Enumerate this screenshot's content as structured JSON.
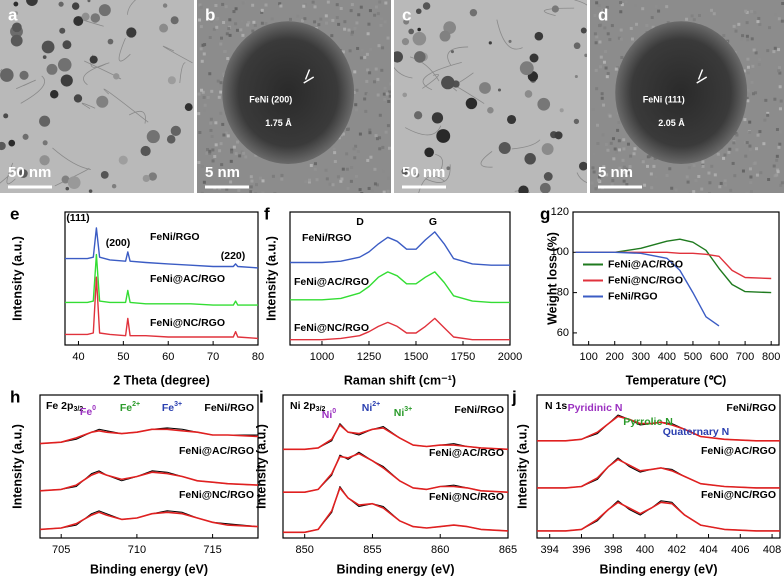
{
  "images": [
    {
      "label": "a",
      "scale_bar": "50 nm"
    },
    {
      "label": "b",
      "scale_bar": "5 nm",
      "annotation": "FeNi (200)",
      "spacing": "1.75 Å"
    },
    {
      "label": "c",
      "scale_bar": "50 nm"
    },
    {
      "label": "d",
      "scale_bar": "5 nm",
      "annotation": "FeNi (111)",
      "spacing": "2.05 Å"
    }
  ],
  "chart_data": [
    {
      "type": "line",
      "label": "e",
      "xlabel": "2 Theta (degree)",
      "ylabel": "Intensity (a.u.)",
      "x": [
        37,
        40,
        42,
        43.3,
        44,
        44.7,
        47,
        50.5,
        51,
        51.5,
        55,
        60,
        65,
        70,
        74.5,
        75,
        75.5,
        80
      ],
      "xlim": [
        37,
        80
      ],
      "xticks": [
        40,
        50,
        60,
        70,
        80
      ],
      "ylim": [
        0,
        100
      ],
      "annotations": [
        "(111)",
        "(200)",
        "(220)"
      ],
      "series": [
        {
          "name": "FeNi/RGO",
          "color": "#3b5cc4",
          "values": [
            65,
            65,
            65,
            66,
            88,
            66,
            64,
            63,
            70,
            63,
            62,
            61,
            60,
            59,
            59,
            61,
            59,
            58
          ]
        },
        {
          "name": "FeNi@AC/RGO",
          "color": "#33dd33",
          "values": [
            32,
            32,
            32,
            33,
            68,
            33,
            32,
            32,
            41,
            32,
            31,
            31,
            31,
            30,
            30,
            33,
            30,
            30
          ]
        },
        {
          "name": "FeNi@NC/RGO",
          "color": "#e0323c",
          "values": [
            8,
            8,
            8,
            9,
            51,
            9,
            8,
            7,
            20,
            7,
            7,
            6,
            6,
            6,
            6,
            10,
            6,
            5
          ]
        }
      ]
    },
    {
      "type": "line",
      "label": "f",
      "xlabel": "Raman shift (cm⁻¹)",
      "ylabel": "Intensity (a.u.)",
      "x": [
        830,
        900,
        1000,
        1100,
        1200,
        1250,
        1300,
        1350,
        1400,
        1450,
        1500,
        1550,
        1600,
        1650,
        1700,
        1800,
        1900,
        2000
      ],
      "xlim": [
        830,
        2000
      ],
      "xticks": [
        1000,
        1250,
        1500,
        1750,
        2000
      ],
      "ylim": [
        0,
        100
      ],
      "annotations": [
        "D",
        "G"
      ],
      "series": [
        {
          "name": "FeNi/RGO",
          "color": "#3b5cc4",
          "values": [
            62,
            62,
            62,
            63,
            66,
            70,
            76,
            81,
            78,
            72,
            72,
            79,
            85,
            76,
            65,
            61,
            60,
            60
          ]
        },
        {
          "name": "FeNi@AC/RGO",
          "color": "#33dd33",
          "values": [
            34,
            34,
            34,
            35,
            39,
            44,
            51,
            55,
            52,
            46,
            46,
            51,
            55,
            47,
            37,
            33,
            32,
            32
          ]
        },
        {
          "name": "FeNi@NC/RGO",
          "color": "#e0323c",
          "values": [
            4,
            4,
            4,
            5,
            7,
            10,
            14,
            17,
            14,
            9,
            9,
            14,
            20,
            13,
            6,
            4,
            4,
            4
          ]
        }
      ]
    },
    {
      "type": "line",
      "label": "g",
      "xlabel": "Temperature (℃)",
      "ylabel": "Weight loss (%)",
      "x": [
        50,
        100,
        200,
        300,
        400,
        450,
        500,
        550,
        600,
        650,
        700,
        800
      ],
      "xlim": [
        40,
        830
      ],
      "xticks": [
        100,
        200,
        300,
        400,
        500,
        600,
        700,
        800
      ],
      "ylim": [
        54,
        120
      ],
      "yticks": [
        60,
        80,
        100,
        120
      ],
      "legend": "center-left",
      "series": [
        {
          "name": "FeNi@AC/RGO",
          "color": "#1f7a1f",
          "values": [
            100,
            100,
            100,
            102,
            105.5,
            106.5,
            105,
            101,
            92,
            84,
            80.5,
            80
          ]
        },
        {
          "name": "FeNi@NC/RGO",
          "color": "#e0323c",
          "values": [
            100,
            100,
            100,
            100,
            100,
            99.5,
            99.5,
            99,
            98,
            91,
            87.5,
            87
          ]
        },
        {
          "name": "FeNi/RGO",
          "color": "#3b5cc4",
          "values": [
            100,
            100,
            100,
            99.5,
            97,
            91,
            80,
            68,
            63.5,
            null,
            null,
            null
          ]
        }
      ]
    },
    {
      "type": "line",
      "label": "h",
      "title": "Fe 2p",
      "title_sub": "3/2",
      "xlabel": "Binding energy (eV)",
      "ylabel": "Intensity (a.u.)",
      "x": [
        703.6,
        705,
        706,
        707,
        707.5,
        708,
        709,
        710,
        711,
        712,
        713,
        714,
        715,
        716,
        718
      ],
      "xlim": [
        703.6,
        718
      ],
      "xticks": [
        705,
        710,
        715
      ],
      "ylim": [
        0,
        100
      ],
      "fit_color": "#e02020",
      "components": [
        {
          "text": "Fe",
          "sup": "0",
          "color": "#9b30c0"
        },
        {
          "text": "Fe",
          "sup": "2+",
          "color": "#2a9a2a"
        },
        {
          "text": "Fe",
          "sup": "3+",
          "color": "#2a3fb0"
        }
      ],
      "series": [
        {
          "name": "FeNi/RGO",
          "color": "#000000",
          "values": [
            66,
            67,
            69,
            74,
            76,
            75,
            73,
            74,
            76,
            77,
            76,
            74,
            72,
            72,
            72
          ],
          "fit": [
            66,
            67,
            70,
            74,
            75,
            74,
            73,
            74,
            76,
            76,
            75,
            74,
            72,
            72,
            71
          ]
        },
        {
          "name": "FeNi@AC/RGO",
          "color": "#000000",
          "values": [
            33,
            34,
            36,
            45,
            47,
            44,
            40,
            43,
            47,
            46,
            43,
            40,
            39,
            38,
            37
          ],
          "fit": [
            33,
            34,
            37,
            44,
            46,
            44,
            41,
            43,
            46,
            45,
            43,
            40,
            39,
            38,
            37
          ]
        },
        {
          "name": "FeNi@NC/RGO",
          "color": "#000000",
          "values": [
            6,
            7,
            9,
            17,
            19,
            17,
            13,
            14,
            17,
            19,
            18,
            14,
            11,
            10,
            8
          ],
          "fit": [
            6,
            7,
            10,
            16,
            18,
            16,
            13,
            14,
            17,
            18,
            17,
            14,
            11,
            9,
            8
          ]
        }
      ]
    },
    {
      "type": "line",
      "label": "i",
      "title": "Ni 2p",
      "title_sub": "3/2",
      "xlabel": "Binding energy (eV)",
      "ylabel": "Intensity (a.u.)",
      "x": [
        848.4,
        850,
        851,
        852,
        852.6,
        853.2,
        854,
        855,
        855.8,
        857,
        858,
        859,
        860,
        861,
        862,
        863,
        865
      ],
      "xlim": [
        848.4,
        865
      ],
      "xticks": [
        850,
        855,
        860,
        865
      ],
      "ylim": [
        0,
        100
      ],
      "fit_color": "#e02020",
      "components": [
        {
          "text": "Ni",
          "sup": "0",
          "color": "#9b30c0"
        },
        {
          "text": "Ni",
          "sup": "2+",
          "color": "#2a3fb0"
        },
        {
          "text": "Ni",
          "sup": "3+",
          "color": "#2a9a2a"
        }
      ],
      "series": [
        {
          "name": "FeNi/RGO",
          "color": "#000000",
          "values": [
            62,
            62,
            63,
            68,
            80,
            74,
            72,
            76,
            78,
            70,
            65,
            64,
            65,
            66,
            64,
            63,
            62
          ],
          "fit": [
            62,
            62,
            63,
            69,
            79,
            74,
            73,
            76,
            77,
            70,
            65,
            64,
            65,
            65,
            64,
            63,
            62
          ]
        },
        {
          "name": "FeNi@AC/RGO",
          "color": "#000000",
          "values": [
            32,
            32,
            34,
            44,
            58,
            55,
            60,
            54,
            50,
            40,
            35,
            34,
            36,
            37,
            35,
            33,
            32
          ],
          "fit": [
            32,
            32,
            34,
            45,
            57,
            56,
            59,
            54,
            49,
            40,
            35,
            34,
            36,
            36,
            35,
            33,
            32
          ]
        },
        {
          "name": "FeNi@NC/RGO",
          "color": "#000000",
          "values": [
            4,
            4,
            6,
            18,
            36,
            28,
            22,
            24,
            22,
            12,
            8,
            7,
            8,
            9,
            8,
            6,
            5
          ],
          "fit": [
            4,
            4,
            6,
            19,
            35,
            28,
            23,
            24,
            21,
            12,
            8,
            7,
            8,
            9,
            8,
            6,
            5
          ]
        }
      ]
    },
    {
      "type": "line",
      "label": "j",
      "title": "N 1s",
      "xlabel": "Binding energy (eV)",
      "ylabel": "Intensity (a.u.)",
      "x": [
        393.2,
        395,
        396,
        397,
        397.7,
        398.3,
        399,
        399.7,
        400.4,
        401,
        401.7,
        402.5,
        403.5,
        405,
        407,
        408.5
      ],
      "xlim": [
        393.2,
        408.5
      ],
      "xticks": [
        394,
        396,
        398,
        400,
        402,
        404,
        406,
        408
      ],
      "ylim": [
        0,
        100
      ],
      "fit_color": "#e02020",
      "components": [
        {
          "text": "Pyridinic N",
          "color": "#9b30c0"
        },
        {
          "text": "Pyrrolic N",
          "color": "#2a9a2a"
        },
        {
          "text": "Quaternary N",
          "color": "#2a3fb0"
        }
      ],
      "series": [
        {
          "name": "FeNi/RGO",
          "color": "#000000",
          "values": [
            68,
            68,
            69,
            73,
            80,
            86,
            83,
            79,
            80,
            81,
            80,
            76,
            71,
            69,
            68,
            68
          ],
          "fit": [
            68,
            68,
            69,
            74,
            80,
            85,
            83,
            80,
            80,
            81,
            79,
            76,
            71,
            69,
            68,
            68
          ]
        },
        {
          "name": "FeNi@AC/RGO",
          "color": "#000000",
          "values": [
            35,
            35,
            36,
            41,
            50,
            56,
            50,
            46,
            48,
            49,
            48,
            43,
            38,
            36,
            35,
            35
          ],
          "fit": [
            35,
            35,
            36,
            42,
            50,
            55,
            51,
            47,
            48,
            49,
            47,
            43,
            38,
            36,
            35,
            35
          ]
        },
        {
          "name": "FeNi@NC/RGO",
          "color": "#000000",
          "values": [
            5,
            5,
            6,
            12,
            20,
            26,
            20,
            16,
            21,
            26,
            25,
            16,
            9,
            6,
            5,
            5
          ],
          "fit": [
            5,
            5,
            6,
            13,
            20,
            25,
            21,
            17,
            21,
            25,
            24,
            16,
            9,
            6,
            5,
            5
          ]
        }
      ]
    }
  ]
}
